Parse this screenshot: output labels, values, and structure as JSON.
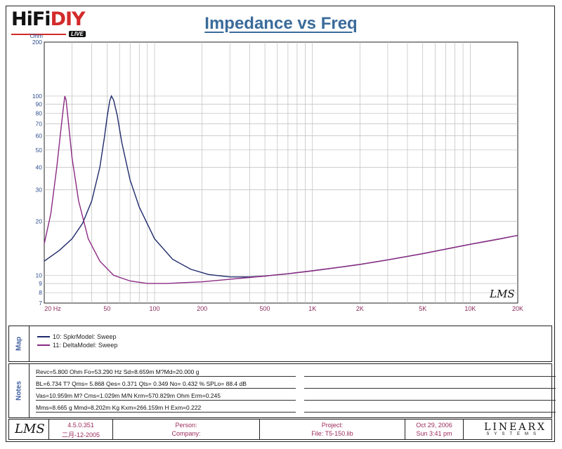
{
  "logo": {
    "main": "HiFi",
    "accent": "DIY",
    "sub": "LIVE"
  },
  "chart_data": {
    "type": "line",
    "title": "Impedance vs Freq",
    "ylabel": "Ohm",
    "xscale": "log",
    "yscale": "log",
    "xlim": [
      20,
      20000
    ],
    "ylim": [
      7,
      200
    ],
    "xticks": [
      20,
      50,
      100,
      200,
      500,
      1000,
      2000,
      5000,
      10000,
      20000
    ],
    "xtick_labels": [
      "20 Hz",
      "50",
      "100",
      "200",
      "500",
      "1K",
      "2K",
      "5K",
      "10K",
      "20K"
    ],
    "yticks": [
      7,
      8,
      9,
      10,
      20,
      30,
      40,
      50,
      60,
      70,
      80,
      90,
      100,
      200
    ],
    "ytick_labels": [
      "7",
      "8",
      "9",
      "10",
      "20",
      "30",
      "40",
      "50",
      "60",
      "70",
      "80",
      "90",
      "100",
      "200"
    ],
    "grid": true,
    "watermark": "LMS",
    "series": [
      {
        "name": "10: SpkrModel: Sweep",
        "color": "#1f2a6b",
        "x": [
          20,
          25,
          30,
          35,
          40,
          45,
          48,
          50,
          52,
          53.3,
          55,
          58,
          62,
          70,
          80,
          100,
          130,
          170,
          220,
          300,
          400,
          500,
          700,
          1000,
          1500,
          2000,
          3000,
          5000,
          7000,
          10000,
          15000,
          20000
        ],
        "y": [
          12,
          13.8,
          16,
          19.5,
          26,
          40,
          58,
          76,
          94,
          100,
          95,
          78,
          55,
          34,
          24,
          16,
          12.3,
          10.8,
          10.1,
          9.8,
          9.8,
          9.9,
          10.2,
          10.6,
          11.1,
          11.5,
          12.2,
          13.2,
          14,
          14.9,
          15.9,
          16.7
        ]
      },
      {
        "name": "11: DeltaModel: Sweep",
        "color": "#8a2a82",
        "x": [
          20,
          22,
          24,
          25.5,
          26.5,
          27,
          27.5,
          28.5,
          30,
          33,
          38,
          45,
          55,
          70,
          90,
          100,
          120,
          150,
          200,
          300,
          500,
          700,
          1000,
          1500,
          2000,
          3000,
          5000,
          7000,
          10000,
          15000,
          20000
        ],
        "y": [
          15,
          22,
          40,
          65,
          88,
          100,
          95,
          70,
          45,
          26,
          16,
          12,
          10,
          9.3,
          9.0,
          9.0,
          9.0,
          9.1,
          9.2,
          9.5,
          9.9,
          10.2,
          10.6,
          11.1,
          11.5,
          12.2,
          13.2,
          14,
          14.9,
          15.9,
          16.7
        ]
      }
    ]
  },
  "map": {
    "label": "Map",
    "legend": [
      "10: SpkrModel: Sweep",
      "11: DeltaModel: Sweep"
    ]
  },
  "notes": {
    "label": "Notes",
    "lines": [
      "Revc=5.800 Ohm  Fo=53.290 Hz  Sd=8.659m M?Md=20.000 g",
      "BL=6.734 T?  Qms= 5.868  Qes= 0.371  Qts= 0.349  No= 0.432 %  SPLo= 88.4 dB",
      "Vas=10.959m M? Cms=1.029m M/N  Krm=570.829m Ohm  Erm=0.245",
      "Mms=8.665 g  Mmd=8.202m Kg  Kxm=266.159m H  Exm=0.222"
    ]
  },
  "footer": {
    "logo": "LMS",
    "version": "4.5.0.351",
    "build_date": "二月-12-2005",
    "person_label": "Person:",
    "company_label": "Company:",
    "project_label": "Project:",
    "file_label": "File: T5-150.lib",
    "date": "Oct 29, 2006",
    "time": "Sun  3:41 pm",
    "brand": "LINEARX",
    "brand_sub": "SYSTEMS"
  }
}
